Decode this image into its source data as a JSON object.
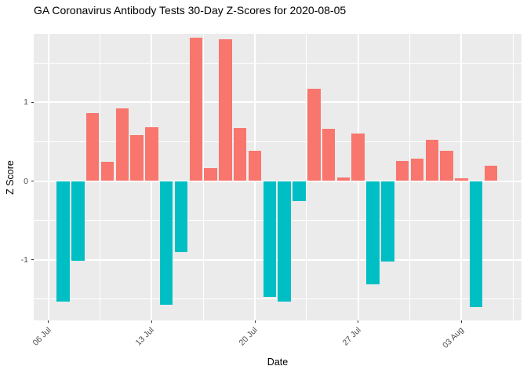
{
  "title": "GA Coronavirus Antibody Tests 30-Day Z-Scores for 2020-08-05",
  "chart_data": {
    "type": "bar",
    "title": "GA Coronavirus Antibody Tests 30-Day Z-Scores for 2020-08-05",
    "xlabel": "Date",
    "ylabel": "Z Score",
    "legend": "none",
    "grid": "white major and minor gridlines on gray panel",
    "x_tick_labels": [
      "06 Jul",
      "13 Jul",
      "20 Jul",
      "27 Jul",
      "03 Aug"
    ],
    "y_tick_labels": [
      "-1",
      "0",
      "1"
    ],
    "ylim": [
      -1.78,
      1.88
    ],
    "categories": [
      "07 Jul",
      "08 Jul",
      "09 Jul",
      "10 Jul",
      "11 Jul",
      "12 Jul",
      "13 Jul",
      "14 Jul",
      "15 Jul",
      "16 Jul",
      "17 Jul",
      "18 Jul",
      "19 Jul",
      "20 Jul",
      "21 Jul",
      "22 Jul",
      "23 Jul",
      "24 Jul",
      "25 Jul",
      "26 Jul",
      "27 Jul",
      "28 Jul",
      "29 Jul",
      "30 Jul",
      "31 Jul",
      "01 Aug",
      "02 Aug",
      "03 Aug",
      "04 Aug",
      "05 Aug"
    ],
    "values": [
      -1.53,
      -1.01,
      0.86,
      0.24,
      0.92,
      0.58,
      0.68,
      -1.57,
      -0.9,
      1.82,
      0.16,
      1.8,
      0.67,
      0.38,
      -1.47,
      -1.53,
      -0.25,
      1.17,
      0.66,
      0.04,
      0.6,
      -1.31,
      -1.02,
      0.25,
      0.28,
      0.52,
      0.38,
      0.03,
      -1.6,
      0.19
    ],
    "colors": {
      "positive_bar": "#F8766D",
      "negative_bar": "#00BFC4",
      "panel_background": "#EBEBEB",
      "gridline": "#FFFFFF",
      "tick_label_text": "#4D4D4D",
      "axis_title_text": "#000000",
      "title_text": "#000000",
      "tick_mark": "#333333"
    }
  }
}
